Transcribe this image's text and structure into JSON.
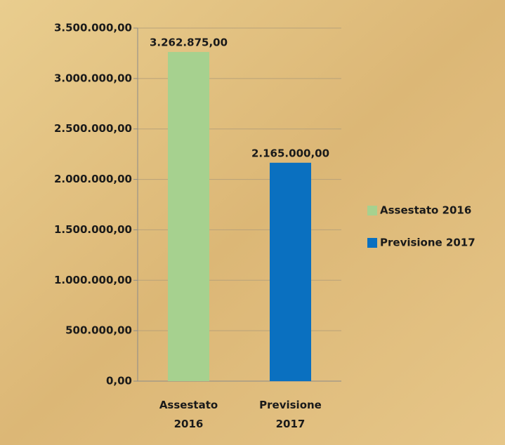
{
  "chart_data": {
    "type": "bar",
    "categories": [
      "Assestato 2016",
      "Previsione 2017"
    ],
    "values": [
      3262875,
      2165000
    ],
    "value_labels": [
      "3.262.875,00",
      "2.165.000,00"
    ],
    "colors": [
      "#a6d18f",
      "#0a70c0"
    ],
    "ylim": [
      0,
      3500000
    ],
    "yticks": [
      {
        "value": 0,
        "label": "0,00"
      },
      {
        "value": 500000,
        "label": "500.000,00"
      },
      {
        "value": 1000000,
        "label": "1.000.000,00"
      },
      {
        "value": 1500000,
        "label": "1.500.000,00"
      },
      {
        "value": 2000000,
        "label": "2.000.000,00"
      },
      {
        "value": 2500000,
        "label": "2.500.000,00"
      },
      {
        "value": 3000000,
        "label": "3.000.000,00"
      },
      {
        "value": 3500000,
        "label": "3.500.000,00"
      }
    ],
    "grid": true,
    "legend": "right"
  }
}
